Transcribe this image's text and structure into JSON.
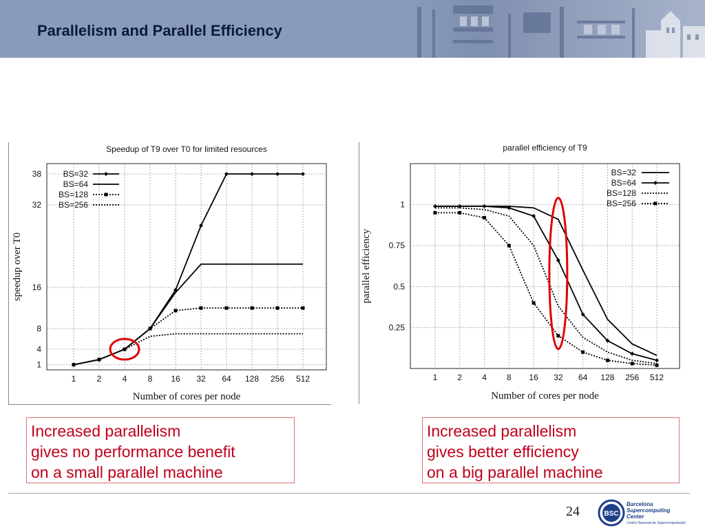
{
  "slide": {
    "title": "Parallelism and Parallel Efficiency",
    "page_number": "24"
  },
  "captions": {
    "left": [
      "Increased parallelism",
      "gives no performance benefit",
      "on a small parallel machine"
    ],
    "right": [
      "Increased parallelism",
      "gives better efficiency",
      "on a big parallel machine"
    ]
  },
  "logo": {
    "mark": "BSC",
    "line1": "Barcelona",
    "line2": "Supercomputing",
    "line3": "Center",
    "line4": "Centro Nacional de Supercomputación"
  },
  "colors": {
    "header_bg": "#8a9bba",
    "title": "#0b1a3c",
    "caption_text": "#c0001a",
    "highlight": "#e00000",
    "logo_blue": "#1c3f8a"
  },
  "chart_data": [
    {
      "type": "line",
      "title": "Speedup of T9 over T0 for limited resources",
      "xlabel": "Number of cores per node",
      "ylabel": "speedup over T0",
      "categories": [
        "1",
        "2",
        "4",
        "8",
        "16",
        "32",
        "64",
        "128",
        "256",
        "512"
      ],
      "yticks": [
        1,
        4,
        8,
        16,
        32,
        38
      ],
      "ylim": [
        0,
        40
      ],
      "grid": true,
      "legend_position": "top-left",
      "series": [
        {
          "name": "BS=32",
          "style": "solid-diamond",
          "values": [
            1,
            2,
            4,
            8,
            15.5,
            28,
            38,
            38,
            38,
            38
          ]
        },
        {
          "name": "BS=64",
          "style": "solid",
          "values": [
            1,
            2,
            4,
            8,
            15,
            20.5,
            20.5,
            20.5,
            20.5,
            20.5
          ]
        },
        {
          "name": "BS=128",
          "style": "dotted-square",
          "values": [
            1,
            2,
            4,
            8,
            11.5,
            12,
            12,
            12,
            12,
            12
          ]
        },
        {
          "name": "BS=256",
          "style": "dotted",
          "values": [
            1,
            2,
            4,
            6.5,
            7,
            7,
            7,
            7,
            7,
            7
          ]
        }
      ],
      "annotation": {
        "shape": "circle",
        "category": "4",
        "value": 4
      }
    },
    {
      "type": "line",
      "title": "parallel efficiency of T9",
      "xlabel": "Number of cores per node",
      "ylabel": "parallel efficiency",
      "categories": [
        "1",
        "2",
        "4",
        "8",
        "16",
        "32",
        "64",
        "128",
        "256",
        "512"
      ],
      "yticks": [
        0.25,
        0.5,
        0.75,
        1
      ],
      "ylim": [
        0,
        1.25
      ],
      "grid": true,
      "legend_position": "top-right",
      "series": [
        {
          "name": "BS=32",
          "style": "solid",
          "values": [
            0.99,
            0.99,
            0.99,
            0.99,
            0.98,
            0.91,
            0.6,
            0.3,
            0.15,
            0.08
          ]
        },
        {
          "name": "BS=64",
          "style": "solid-diamond",
          "values": [
            0.99,
            0.99,
            0.99,
            0.98,
            0.93,
            0.66,
            0.33,
            0.17,
            0.09,
            0.05
          ]
        },
        {
          "name": "BS=128",
          "style": "dotted",
          "values": [
            0.98,
            0.98,
            0.97,
            0.93,
            0.75,
            0.38,
            0.19,
            0.1,
            0.05,
            0.03
          ]
        },
        {
          "name": "BS=256",
          "style": "dotted-square",
          "values": [
            0.95,
            0.95,
            0.92,
            0.75,
            0.4,
            0.2,
            0.1,
            0.05,
            0.03,
            0.02
          ]
        }
      ],
      "annotation": {
        "shape": "ellipse",
        "category": "32",
        "value": 0.58
      }
    }
  ]
}
